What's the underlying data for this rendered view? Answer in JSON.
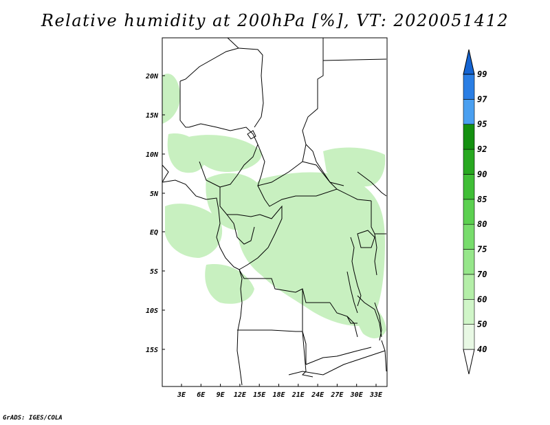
{
  "map": {
    "title": "Relative humidity at 200hPa [%], VT: 2020051412",
    "credit": "GrADS: IGES/COLA",
    "lon_labels": [
      "3E",
      "6E",
      "9E",
      "12E",
      "15E",
      "18E",
      "21E",
      "24E",
      "27E",
      "30E",
      "33E"
    ],
    "lat_labels": [
      "20N",
      "15N",
      "10N",
      "5N",
      "EQ",
      "5S",
      "10S",
      "15S"
    ],
    "colorbar": {
      "levels": [
        "40",
        "50",
        "60",
        "70",
        "75",
        "80",
        "85",
        "90",
        "92",
        "95",
        "97",
        "99"
      ],
      "colors": [
        "#ffffff",
        "#e8f8e4",
        "#d0f5c8",
        "#b4eea8",
        "#96e68a",
        "#78dc6c",
        "#5cd050",
        "#40be36",
        "#28a820",
        "#149010",
        "#4a9ff0",
        "#2a7ee4",
        "#1464d2"
      ]
    },
    "data_color": "#c8f0c0"
  }
}
